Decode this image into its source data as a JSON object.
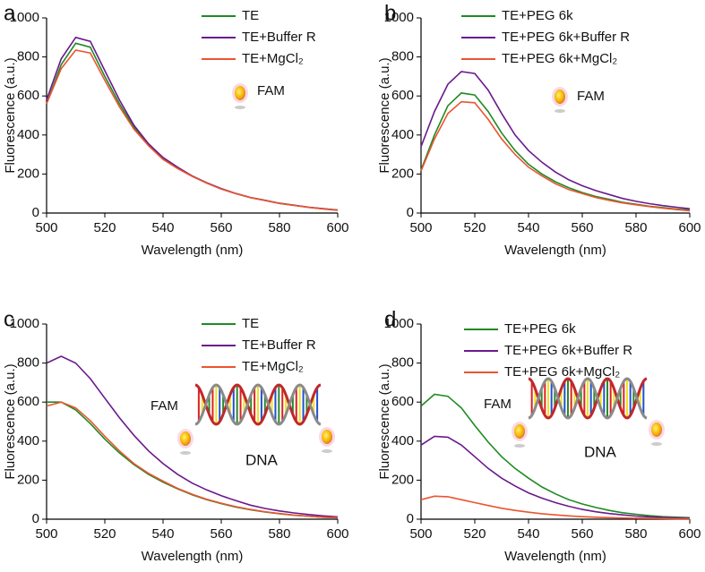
{
  "chart_data": [
    {
      "type": "line",
      "panel_label": "a",
      "xlabel": "Wavelength (nm)",
      "ylabel": "Fluorescence (a.u.)",
      "x": [
        500,
        505,
        510,
        515,
        520,
        525,
        530,
        535,
        540,
        545,
        550,
        555,
        560,
        565,
        570,
        575,
        580,
        585,
        590,
        595,
        600
      ],
      "series": [
        {
          "name": "TE",
          "color": "#1f8a24",
          "values": [
            560,
            760,
            870,
            850,
            700,
            560,
            440,
            350,
            280,
            230,
            190,
            155,
            125,
            100,
            80,
            65,
            50,
            40,
            30,
            22,
            15
          ]
        },
        {
          "name": "TE+Buffer R",
          "color": "#6a1a8c",
          "values": [
            580,
            790,
            900,
            880,
            730,
            580,
            450,
            355,
            285,
            235,
            190,
            155,
            125,
            100,
            80,
            65,
            50,
            40,
            30,
            22,
            15
          ]
        },
        {
          "name": "TE+MgCl₂",
          "color": "#ea5530",
          "values": [
            560,
            740,
            835,
            820,
            680,
            545,
            430,
            345,
            275,
            228,
            188,
            153,
            123,
            99,
            79,
            64,
            49,
            39,
            29,
            21,
            14
          ]
        }
      ],
      "xlim": [
        500,
        600
      ],
      "xticks": [
        500,
        520,
        540,
        560,
        580,
        600
      ],
      "ylim": [
        0,
        1000
      ],
      "yticks": [
        0,
        200,
        400,
        600,
        800,
        1000
      ],
      "annotations": [
        "FAM"
      ]
    },
    {
      "type": "line",
      "panel_label": "b",
      "xlabel": "Wavelength (nm)",
      "ylabel": "Fluorescence (a.u.)",
      "x": [
        500,
        505,
        510,
        515,
        520,
        525,
        530,
        535,
        540,
        545,
        550,
        555,
        560,
        565,
        570,
        575,
        580,
        585,
        590,
        595,
        600
      ],
      "series": [
        {
          "name": "TE+PEG 6k",
          "color": "#1f8a24",
          "values": [
            220,
            400,
            550,
            615,
            605,
            520,
            410,
            320,
            250,
            200,
            160,
            130,
            105,
            85,
            70,
            55,
            45,
            35,
            28,
            20,
            15
          ]
        },
        {
          "name": "TE+PEG 6k+Buffer R",
          "color": "#6a1a8c",
          "values": [
            340,
            520,
            660,
            725,
            715,
            630,
            510,
            400,
            320,
            260,
            210,
            170,
            140,
            115,
            95,
            75,
            60,
            48,
            38,
            30,
            22
          ]
        },
        {
          "name": "TE+PEG 6k+MgCl₂",
          "color": "#ea5530",
          "values": [
            215,
            380,
            510,
            570,
            565,
            480,
            380,
            300,
            235,
            190,
            150,
            120,
            100,
            80,
            65,
            52,
            42,
            33,
            25,
            18,
            12
          ]
        }
      ],
      "xlim": [
        500,
        600
      ],
      "xticks": [
        500,
        520,
        540,
        560,
        580,
        600
      ],
      "ylim": [
        0,
        1000
      ],
      "yticks": [
        0,
        200,
        400,
        600,
        800,
        1000
      ],
      "annotations": [
        "FAM"
      ]
    },
    {
      "type": "line",
      "panel_label": "c",
      "xlabel": "Wavelength (nm)",
      "ylabel": "Fluorescence (a.u.)",
      "x": [
        500,
        505,
        510,
        515,
        520,
        525,
        530,
        535,
        540,
        545,
        550,
        555,
        560,
        565,
        570,
        575,
        580,
        585,
        590,
        595,
        600
      ],
      "series": [
        {
          "name": "TE",
          "color": "#1f8a24",
          "values": [
            600,
            600,
            560,
            490,
            410,
            340,
            280,
            230,
            190,
            155,
            125,
            100,
            80,
            62,
            48,
            37,
            28,
            20,
            15,
            10,
            8
          ]
        },
        {
          "name": "TE+Buffer R",
          "color": "#6a1a8c",
          "values": [
            800,
            835,
            800,
            720,
            620,
            520,
            430,
            350,
            285,
            230,
            185,
            150,
            120,
            95,
            72,
            55,
            42,
            32,
            24,
            17,
            12
          ]
        },
        {
          "name": "TE+MgCl₂",
          "color": "#ea5530",
          "values": [
            580,
            600,
            570,
            505,
            425,
            350,
            285,
            235,
            195,
            158,
            128,
            102,
            82,
            64,
            50,
            38,
            29,
            21,
            15,
            10,
            8
          ]
        }
      ],
      "xlim": [
        500,
        600
      ],
      "xticks": [
        500,
        520,
        540,
        560,
        580,
        600
      ],
      "ylim": [
        0,
        1000
      ],
      "yticks": [
        0,
        200,
        400,
        600,
        800,
        1000
      ],
      "annotations": [
        "FAM",
        "DNA"
      ]
    },
    {
      "type": "line",
      "panel_label": "d",
      "xlabel": "Wavelength (nm)",
      "ylabel": "Fluorescence (a.u.)",
      "x": [
        500,
        505,
        510,
        515,
        520,
        525,
        530,
        535,
        540,
        545,
        550,
        555,
        560,
        565,
        570,
        575,
        580,
        585,
        590,
        595,
        600
      ],
      "series": [
        {
          "name": "TE+PEG 6k",
          "color": "#1f8a24",
          "values": [
            580,
            640,
            630,
            570,
            480,
            395,
            320,
            260,
            210,
            165,
            130,
            100,
            78,
            60,
            45,
            33,
            25,
            18,
            13,
            10,
            8
          ]
        },
        {
          "name": "TE+PEG 6k+Buffer R",
          "color": "#6a1a8c",
          "values": [
            380,
            425,
            420,
            380,
            320,
            260,
            210,
            170,
            135,
            108,
            85,
            66,
            50,
            38,
            29,
            22,
            16,
            12,
            9,
            7,
            5
          ]
        },
        {
          "name": "TE+PEG 6k+MgCl₂",
          "color": "#ea5530",
          "values": [
            100,
            118,
            115,
            100,
            85,
            70,
            56,
            45,
            36,
            28,
            22,
            17,
            13,
            10,
            8,
            6,
            5,
            4,
            3,
            2,
            2
          ]
        }
      ],
      "xlim": [
        500,
        600
      ],
      "xticks": [
        500,
        520,
        540,
        560,
        580,
        600
      ],
      "ylim": [
        0,
        1000
      ],
      "yticks": [
        0,
        200,
        400,
        600,
        800,
        1000
      ],
      "annotations": [
        "FAM",
        "DNA"
      ]
    }
  ]
}
